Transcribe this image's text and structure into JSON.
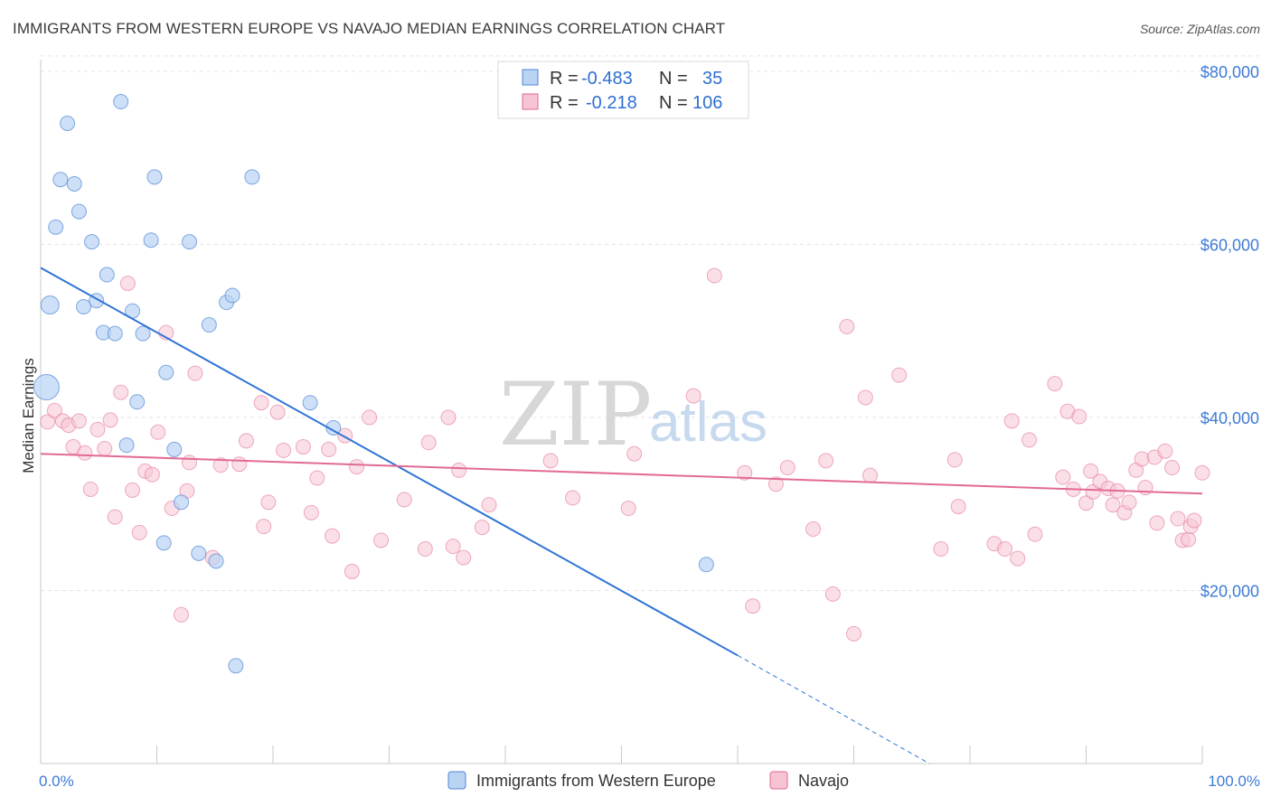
{
  "header": {
    "title": "IMMIGRANTS FROM WESTERN EUROPE VS NAVAJO MEDIAN EARNINGS CORRELATION CHART",
    "source": "Source: ZipAtlas.com"
  },
  "watermark": {
    "zip": "ZIP",
    "atlas": "atlas"
  },
  "legend_box": {
    "rows": [
      {
        "r_label": "R =",
        "r_value": "-0.483",
        "n_label": "N =",
        "n_value": "35"
      },
      {
        "r_label": "R =",
        "r_value": "-0.218",
        "n_label": "N =",
        "n_value": "106"
      }
    ]
  },
  "colors": {
    "blue": "#4f86d6",
    "blue_fill": "#b9d3f3",
    "pink": "#e06a92",
    "pink_fill": "#f7c4d4",
    "axis_text": "#3e7bd6"
  },
  "chart_data": {
    "type": "scatter",
    "title": "IMMIGRANTS FROM WESTERN EUROPE VS NAVAJO MEDIAN EARNINGS CORRELATION CHART",
    "xlabel": "",
    "ylabel": "Median Earnings",
    "xlim": [
      0,
      100
    ],
    "ylim": [
      0,
      82000
    ],
    "y_ticks": [
      20000,
      40000,
      60000,
      80000
    ],
    "y_tick_labels": [
      "$20,000",
      "$40,000",
      "$60,000",
      "$80,000"
    ],
    "x_tick_labels": [
      "0.0%",
      "100.0%"
    ],
    "grid": true,
    "legend_position": "bottom",
    "series": [
      {
        "name": "Immigrants from Western Europe",
        "color": "#4f86d6",
        "r": -0.483,
        "n": 35,
        "trend": {
          "x_start": 0,
          "y_start": 57300,
          "x_end": 60,
          "y_end": 12500,
          "dashed_to_x": 76.5,
          "dashed_to_y": 0
        },
        "points": [
          [
            0.5,
            43500,
            14
          ],
          [
            0.8,
            53000,
            10
          ],
          [
            1.3,
            62000,
            8
          ],
          [
            1.7,
            67500,
            8
          ],
          [
            2.3,
            74000,
            8
          ],
          [
            2.9,
            67000,
            8
          ],
          [
            3.3,
            63800,
            8
          ],
          [
            3.7,
            52800,
            8
          ],
          [
            4.4,
            60300,
            8
          ],
          [
            4.8,
            53500,
            8
          ],
          [
            5.4,
            49800,
            8
          ],
          [
            5.7,
            56500,
            8
          ],
          [
            6.4,
            49700,
            8
          ],
          [
            6.9,
            76500,
            8
          ],
          [
            7.4,
            36800,
            8
          ],
          [
            7.9,
            52300,
            8
          ],
          [
            8.3,
            41800,
            8
          ],
          [
            8.8,
            49700,
            8
          ],
          [
            9.5,
            60500,
            8
          ],
          [
            9.8,
            67800,
            8
          ],
          [
            10.6,
            25500,
            8
          ],
          [
            10.8,
            45200,
            8
          ],
          [
            11.5,
            36300,
            8
          ],
          [
            12.1,
            30200,
            8
          ],
          [
            12.8,
            60300,
            8
          ],
          [
            13.6,
            24300,
            8
          ],
          [
            14.5,
            50700,
            8
          ],
          [
            15.1,
            23400,
            8
          ],
          [
            16.0,
            53300,
            8
          ],
          [
            16.5,
            54100,
            8
          ],
          [
            16.8,
            11300,
            8
          ],
          [
            18.2,
            67800,
            8
          ],
          [
            23.2,
            41700,
            8
          ],
          [
            25.2,
            38800,
            8
          ],
          [
            57.3,
            23000,
            8
          ]
        ]
      },
      {
        "name": "Navajo",
        "color": "#e06a92",
        "r": -0.218,
        "n": 106,
        "trend": {
          "x_start": 0,
          "y_start": 35800,
          "x_end": 100,
          "y_end": 31200
        },
        "points": [
          [
            0.6,
            39500
          ],
          [
            1.2,
            40800
          ],
          [
            1.9,
            39600
          ],
          [
            2.4,
            39100
          ],
          [
            2.8,
            36600
          ],
          [
            3.3,
            39600
          ],
          [
            3.8,
            35900
          ],
          [
            4.3,
            31700
          ],
          [
            4.9,
            38600
          ],
          [
            5.5,
            36400
          ],
          [
            6.0,
            39700
          ],
          [
            6.4,
            28500
          ],
          [
            6.9,
            42900
          ],
          [
            7.5,
            55500
          ],
          [
            7.9,
            31600
          ],
          [
            8.5,
            26700
          ],
          [
            9.0,
            33800
          ],
          [
            9.6,
            33400
          ],
          [
            10.1,
            38300
          ],
          [
            10.8,
            49800
          ],
          [
            11.3,
            29500
          ],
          [
            12.1,
            17200
          ],
          [
            12.6,
            31500
          ],
          [
            12.8,
            34800
          ],
          [
            13.3,
            45100
          ],
          [
            14.8,
            23800
          ],
          [
            15.5,
            34500
          ],
          [
            17.1,
            34600
          ],
          [
            17.7,
            37300
          ],
          [
            19.0,
            41700
          ],
          [
            19.2,
            27400
          ],
          [
            19.6,
            30200
          ],
          [
            20.4,
            40600
          ],
          [
            20.9,
            36200
          ],
          [
            22.6,
            36600
          ],
          [
            23.3,
            29000
          ],
          [
            23.8,
            33000
          ],
          [
            24.8,
            36300
          ],
          [
            25.1,
            26300
          ],
          [
            26.2,
            37900
          ],
          [
            26.8,
            22200
          ],
          [
            27.2,
            34300
          ],
          [
            28.3,
            40000
          ],
          [
            29.3,
            25800
          ],
          [
            31.3,
            30500
          ],
          [
            33.1,
            24800
          ],
          [
            33.4,
            37100
          ],
          [
            35.1,
            40000
          ],
          [
            35.5,
            25100
          ],
          [
            36.0,
            33900
          ],
          [
            36.4,
            23800
          ],
          [
            38.0,
            27300
          ],
          [
            38.6,
            29900
          ],
          [
            43.9,
            35000
          ],
          [
            45.8,
            30700
          ],
          [
            50.6,
            29500
          ],
          [
            51.1,
            35800
          ],
          [
            56.2,
            42500
          ],
          [
            58.0,
            56400
          ],
          [
            60.6,
            33600
          ],
          [
            61.3,
            18200
          ],
          [
            63.3,
            32300
          ],
          [
            64.3,
            34200
          ],
          [
            66.5,
            27100
          ],
          [
            67.6,
            35000
          ],
          [
            68.2,
            19600
          ],
          [
            69.4,
            50500
          ],
          [
            70.0,
            15000
          ],
          [
            71.0,
            42300
          ],
          [
            71.4,
            33300
          ],
          [
            73.9,
            44900
          ],
          [
            77.5,
            24800
          ],
          [
            78.7,
            35100
          ],
          [
            79.0,
            29700
          ],
          [
            82.1,
            25400
          ],
          [
            83.0,
            24800
          ],
          [
            83.6,
            39600
          ],
          [
            84.1,
            23700
          ],
          [
            85.1,
            37400
          ],
          [
            85.6,
            26500
          ],
          [
            87.3,
            43900
          ],
          [
            88.0,
            33100
          ],
          [
            88.4,
            40700
          ],
          [
            88.9,
            31700
          ],
          [
            89.4,
            40100
          ],
          [
            90.0,
            30100
          ],
          [
            90.4,
            33800
          ],
          [
            90.6,
            31400
          ],
          [
            91.2,
            32600
          ],
          [
            91.9,
            31800
          ],
          [
            92.3,
            29900
          ],
          [
            92.7,
            31500
          ],
          [
            93.3,
            29000
          ],
          [
            93.7,
            30200
          ],
          [
            94.3,
            33900
          ],
          [
            94.8,
            35200
          ],
          [
            95.1,
            31900
          ],
          [
            95.9,
            35400
          ],
          [
            96.1,
            27800
          ],
          [
            96.8,
            36100
          ],
          [
            97.4,
            34200
          ],
          [
            97.9,
            28300
          ],
          [
            98.3,
            25800
          ],
          [
            98.8,
            25900
          ],
          [
            99.0,
            27400
          ],
          [
            99.3,
            28100
          ],
          [
            100.0,
            33600
          ]
        ]
      }
    ]
  },
  "bottom_legend": {
    "items": [
      "Immigrants from Western Europe",
      "Navajo"
    ]
  }
}
